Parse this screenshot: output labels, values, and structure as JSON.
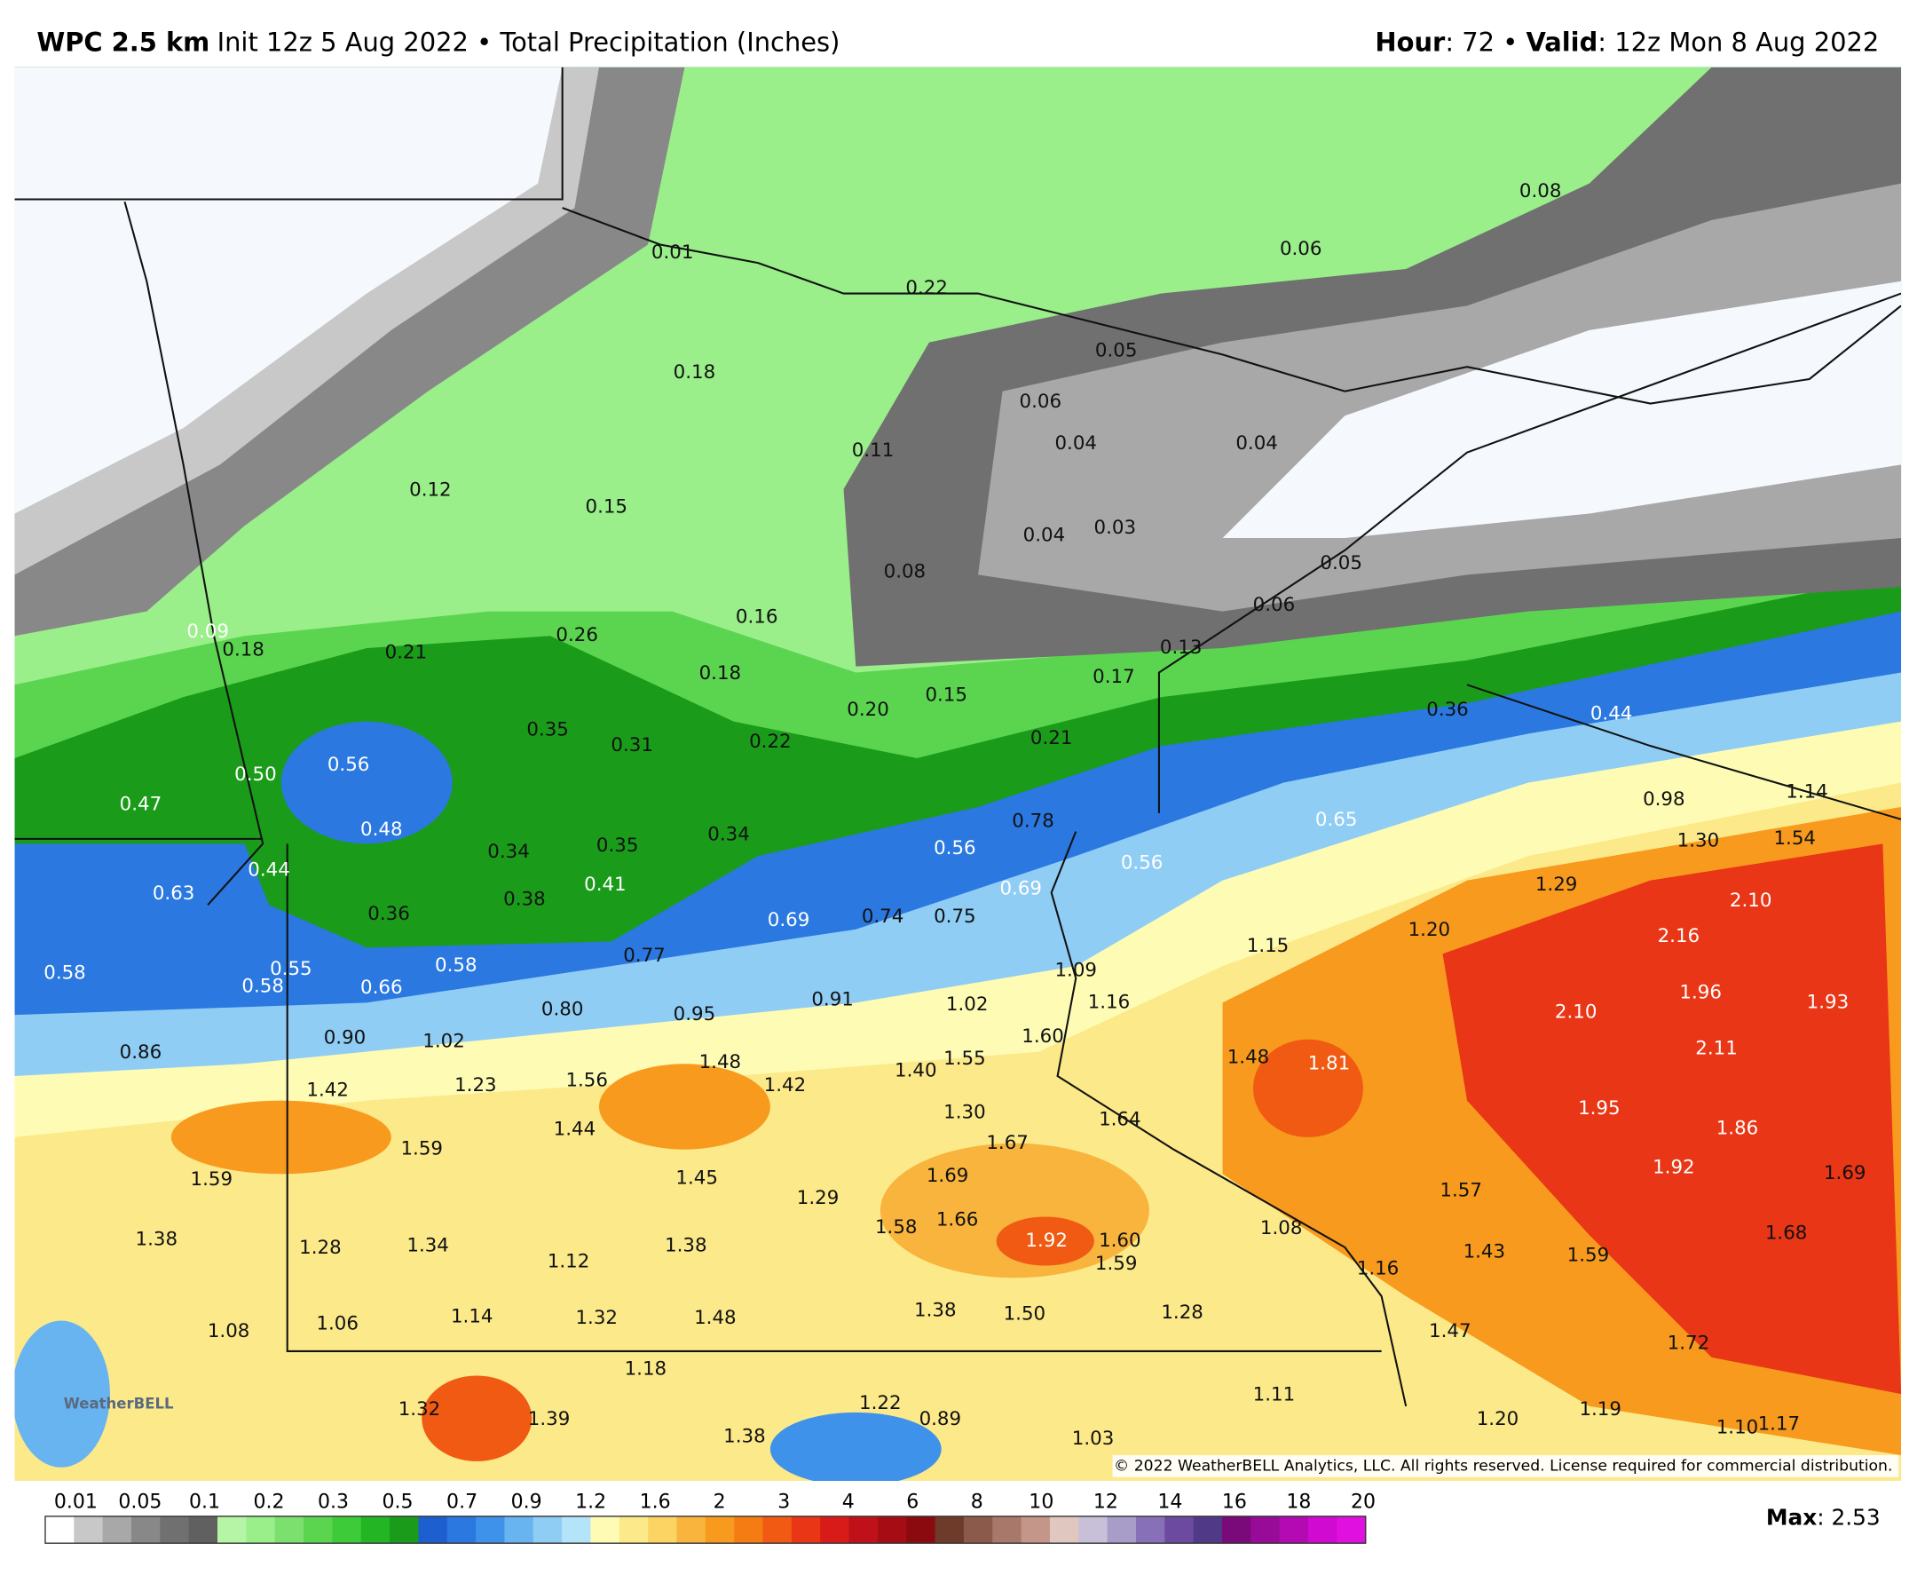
{
  "header": {
    "model": "WPC 2.5 km",
    "info": "Init 12z 5 Aug 2022 • Total Precipitation (Inches)",
    "hour_label": "Hour",
    "hour": ": 72 • ",
    "valid_label": "Valid",
    "valid": ": 12z Mon 8 Aug 2022"
  },
  "map": {
    "labels": [
      "0.01",
      "0.22",
      "0.08",
      "0.06",
      "0.05",
      "0.18",
      "0.06",
      "0.04",
      "0.04",
      "0.11",
      "0.12",
      "0.15",
      "0.04",
      "0.03",
      "0.08",
      "0.05",
      "0.06",
      "0.16",
      "0.09",
      "0.18",
      "0.21",
      "0.26",
      "0.13",
      "0.18",
      "0.17",
      "0.15",
      "0.20",
      "0.36",
      "0.44",
      "0.35",
      "0.31",
      "0.22",
      "0.21",
      "0.56",
      "0.50",
      "0.47",
      "0.98",
      "1.14",
      "0.78",
      "0.65",
      "0.48",
      "0.34",
      "0.35",
      "0.34",
      "0.56",
      "1.30",
      "1.54",
      "0.44",
      "0.63",
      "0.56",
      "0.41",
      "0.38",
      "0.69",
      "1.29",
      "2.10",
      "0.36",
      "0.74",
      "0.75",
      "0.69",
      "1.20",
      "2.16",
      "1.15",
      "0.77",
      "0.58",
      "0.55",
      "0.58",
      "0.58",
      "0.66",
      "1.09",
      "1.96",
      "1.93",
      "0.80",
      "0.95",
      "0.91",
      "1.02",
      "1.16",
      "2.10",
      "0.90",
      "1.02",
      "1.60",
      "0.86",
      "2.11",
      "1.48",
      "1.81",
      "1.48",
      "1.55",
      "1.40",
      "1.42",
      "1.23",
      "1.56",
      "1.42",
      "1.30",
      "1.95",
      "1.64",
      "1.44",
      "1.86",
      "1.67",
      "1.59",
      "1.92",
      "1.59",
      "1.45",
      "1.69",
      "1.29",
      "1.57",
      "1.69",
      "1.66",
      "1.58",
      "1.08",
      "1.38",
      "1.28",
      "1.34",
      "1.12",
      "1.38",
      "1.92",
      "1.60",
      "1.59",
      "1.43",
      "1.59",
      "1.68",
      "1.16",
      "1.38",
      "1.50",
      "1.28",
      "1.14",
      "1.32",
      "1.48",
      "1.06",
      "1.08",
      "1.47",
      "1.72",
      "1.18",
      "1.11",
      "1.22",
      "0.89",
      "1.32",
      "1.39",
      "1.38",
      "1.20",
      "1.19",
      "1.10",
      "1.17",
      "1.03"
    ],
    "copyright": "© 2022 WeatherBELL Analytics, LLC. All rights reserved. License required for commercial distribution.",
    "logo": "WeatherBELL"
  },
  "legend": {
    "ticks": [
      "0.01",
      "0.05",
      "0.1",
      "0.2",
      "0.3",
      "0.5",
      "0.7",
      "0.9",
      "1.2",
      "1.6",
      "2",
      "3",
      "4",
      "6",
      "8",
      "10",
      "12",
      "14",
      "16",
      "18",
      "20"
    ],
    "colors": [
      "#ffffff",
      "#c8c8c8",
      "#a8a8a8",
      "#888888",
      "#707070",
      "#606060",
      "#b6f5a6",
      "#9aef8a",
      "#7be06e",
      "#5bd54f",
      "#3ecb3a",
      "#23b523",
      "#1a9c1a",
      "#1e5fd0",
      "#2a78e0",
      "#3f92ea",
      "#68b4f0",
      "#8fcdf5",
      "#b4e4fa",
      "#fefcb4",
      "#fce98a",
      "#fbd464",
      "#f8b43c",
      "#f79a1e",
      "#f57c12",
      "#f05a12",
      "#e93616",
      "#d81a18",
      "#c0101a",
      "#a60c14",
      "#8a0a10",
      "#6e3a2a",
      "#8c5a4a",
      "#a8786a",
      "#c4968a",
      "#e0c8c0",
      "#c8c0d8",
      "#a89cc8",
      "#8870b8",
      "#6c4aa0",
      "#503a88",
      "#7a0a7a",
      "#980a98",
      "#b40ab4",
      "#d00ad0",
      "#e010e0"
    ]
  },
  "max": {
    "label": "Max",
    "value": ": 2.53"
  }
}
